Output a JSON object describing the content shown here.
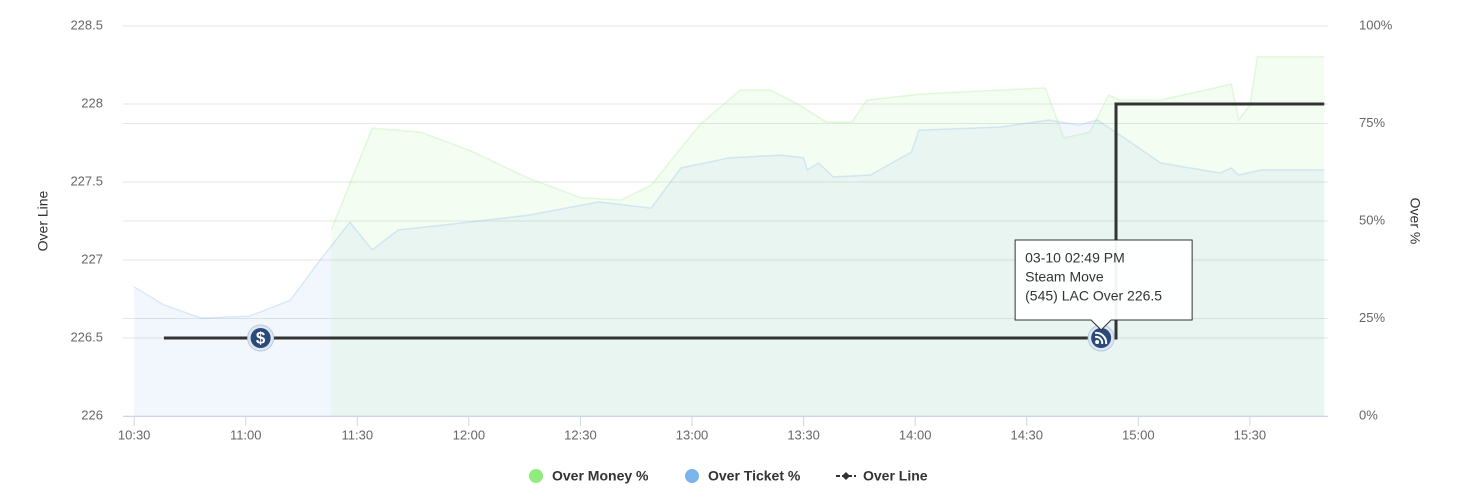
{
  "chart_data": {
    "type": "line",
    "y_label": "Over Line",
    "y2_label": "Over %",
    "xlim": [
      627,
      951
    ],
    "xticks": [
      {
        "value": 630,
        "label": "10:30"
      },
      {
        "value": 660,
        "label": "11:00"
      },
      {
        "value": 690,
        "label": "11:30"
      },
      {
        "value": 720,
        "label": "12:00"
      },
      {
        "value": 750,
        "label": "12:30"
      },
      {
        "value": 780,
        "label": "13:00"
      },
      {
        "value": 810,
        "label": "13:30"
      },
      {
        "value": 840,
        "label": "14:00"
      },
      {
        "value": 870,
        "label": "14:30"
      },
      {
        "value": 900,
        "label": "15:00"
      },
      {
        "value": 930,
        "label": "15:30"
      }
    ],
    "ylim": [
      226,
      228.5
    ],
    "yticks": [
      226,
      226.5,
      227,
      227.5,
      228,
      228.5
    ],
    "y2lim": [
      0,
      100
    ],
    "y2ticks": [
      {
        "value": 0,
        "label": "0%"
      },
      {
        "value": 25,
        "label": "25%"
      },
      {
        "value": 50,
        "label": "50%"
      },
      {
        "value": 75,
        "label": "75%"
      },
      {
        "value": 100,
        "label": "100%"
      }
    ],
    "grid": true,
    "legend": "bottom",
    "series": [
      {
        "name": "Over Money %",
        "color": "#90ed7d",
        "axis": "y2",
        "kind": "area",
        "x": [
          683,
          694,
          707,
          720,
          736,
          750,
          761,
          769,
          782,
          793,
          801,
          809,
          816,
          823,
          827,
          842,
          863,
          875,
          880,
          887,
          892,
          895,
          906,
          925,
          927,
          930,
          932,
          950
        ],
        "values": [
          47.7,
          73.8,
          72.8,
          68.2,
          61,
          56,
          55.4,
          59.2,
          74.6,
          83.6,
          83.6,
          79.7,
          75.4,
          75.4,
          81,
          82.6,
          83.6,
          84.1,
          71.3,
          72.8,
          82.3,
          81,
          81,
          85.1,
          75.9,
          79.7,
          92.1,
          92.1
        ]
      },
      {
        "name": "Over Ticket %",
        "color": "#7cb5ec",
        "axis": "y2",
        "kind": "area",
        "x": [
          630,
          638,
          648,
          661,
          672,
          680,
          688,
          694,
          701,
          720,
          736,
          755,
          769,
          777,
          790,
          804,
          810,
          811,
          814,
          818,
          828,
          839,
          841,
          863,
          876,
          884,
          889,
          897,
          906,
          922,
          925,
          927,
          933,
          950
        ],
        "values": [
          33.1,
          28.5,
          25.1,
          25.6,
          29.7,
          40,
          49.7,
          42.6,
          47.7,
          49.7,
          51.5,
          54.9,
          53.3,
          63.6,
          66.2,
          66.9,
          66.2,
          63.1,
          64.9,
          61.3,
          61.8,
          67.7,
          73.3,
          74.1,
          75.9,
          74.6,
          75.9,
          70.8,
          64.9,
          62.3,
          63.6,
          61.8,
          63.1,
          63.1
        ]
      },
      {
        "name": "Over Line",
        "color": "#333333",
        "kind": "step",
        "x": [
          638,
          894,
          894,
          950
        ],
        "values": [
          226.5,
          226.5,
          228,
          228
        ]
      }
    ],
    "events": [
      {
        "x": 664,
        "y": 226.5,
        "label": "$"
      },
      {
        "x": 890,
        "y": 226.5
      }
    ],
    "tooltip": {
      "lines": [
        "03-10 02:49 PM",
        "Steam Move",
        "(545) LAC Over 226.5"
      ]
    }
  }
}
